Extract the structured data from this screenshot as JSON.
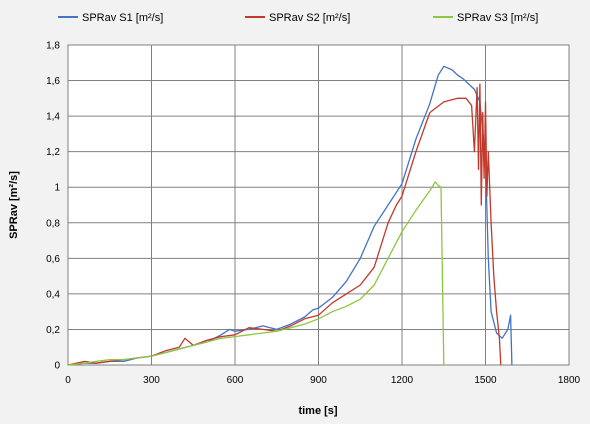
{
  "chart_data": {
    "type": "line",
    "title": "",
    "xlabel": "time [s]",
    "ylabel": "SPRav [m²/s]",
    "xlim": [
      0,
      1800
    ],
    "ylim": [
      0,
      1.8
    ],
    "xticks": [
      0,
      300,
      600,
      900,
      1200,
      1500,
      1800
    ],
    "yticks": [
      0,
      0.2,
      0.4,
      0.6,
      0.8,
      1,
      1.2,
      1.4,
      1.6,
      1.8
    ],
    "ytick_labels": [
      "0",
      "0,2",
      "0,4",
      "0,6",
      "0,8",
      "1",
      "1,2",
      "1,4",
      "1,6",
      "1,8"
    ],
    "grid": true,
    "legend_position": "top",
    "series": [
      {
        "name": "SPRav S1 [m²/s]",
        "color": "#4472c4",
        "x": [
          0,
          60,
          100,
          150,
          200,
          250,
          300,
          350,
          400,
          450,
          500,
          550,
          580,
          600,
          650,
          700,
          750,
          800,
          850,
          880,
          900,
          950,
          1000,
          1050,
          1100,
          1150,
          1200,
          1250,
          1300,
          1330,
          1350,
          1380,
          1400,
          1420,
          1440,
          1460,
          1480,
          1500,
          1510,
          1520,
          1540,
          1560,
          1580,
          1590,
          1595
        ],
        "y": [
          0,
          0.01,
          0.01,
          0.02,
          0.02,
          0.04,
          0.05,
          0.07,
          0.09,
          0.11,
          0.13,
          0.17,
          0.2,
          0.19,
          0.2,
          0.22,
          0.2,
          0.23,
          0.27,
          0.31,
          0.32,
          0.38,
          0.47,
          0.6,
          0.78,
          0.9,
          1.02,
          1.27,
          1.47,
          1.63,
          1.68,
          1.66,
          1.63,
          1.61,
          1.58,
          1.55,
          1.48,
          1.15,
          0.6,
          0.3,
          0.18,
          0.15,
          0.2,
          0.28,
          0
        ]
      },
      {
        "name": "SPRav S2 [m²/s]",
        "color": "#c0392b",
        "x": [
          0,
          60,
          100,
          150,
          200,
          250,
          300,
          350,
          400,
          420,
          450,
          500,
          550,
          600,
          650,
          700,
          750,
          800,
          850,
          900,
          950,
          1000,
          1050,
          1100,
          1150,
          1180,
          1200,
          1250,
          1300,
          1350,
          1400,
          1430,
          1450,
          1460,
          1470,
          1475,
          1480,
          1485,
          1490,
          1495,
          1500,
          1505,
          1510,
          1520,
          1530,
          1540,
          1550,
          1555
        ],
        "y": [
          0,
          0.02,
          0.01,
          0.02,
          0.03,
          0.04,
          0.05,
          0.08,
          0.1,
          0.15,
          0.11,
          0.14,
          0.16,
          0.17,
          0.21,
          0.2,
          0.19,
          0.22,
          0.26,
          0.28,
          0.35,
          0.4,
          0.45,
          0.55,
          0.8,
          0.9,
          0.95,
          1.2,
          1.42,
          1.48,
          1.5,
          1.5,
          1.46,
          1.2,
          1.56,
          1.1,
          1.58,
          0.9,
          1.42,
          1.05,
          1.48,
          0.95,
          1.2,
          0.8,
          0.5,
          0.3,
          0.15,
          0
        ]
      },
      {
        "name": "SPRav S3 [m²/s]",
        "color": "#8dc63f",
        "x": [
          0,
          60,
          100,
          150,
          200,
          250,
          300,
          350,
          400,
          450,
          500,
          550,
          600,
          650,
          700,
          750,
          800,
          850,
          900,
          950,
          1000,
          1050,
          1100,
          1150,
          1200,
          1250,
          1300,
          1320,
          1330,
          1340,
          1345,
          1350
        ],
        "y": [
          0,
          0.01,
          0.02,
          0.03,
          0.03,
          0.04,
          0.05,
          0.07,
          0.09,
          0.11,
          0.13,
          0.15,
          0.16,
          0.17,
          0.18,
          0.19,
          0.21,
          0.23,
          0.26,
          0.3,
          0.33,
          0.37,
          0.45,
          0.6,
          0.75,
          0.87,
          0.98,
          1.03,
          1.01,
          1.0,
          0.5,
          0
        ]
      }
    ]
  }
}
